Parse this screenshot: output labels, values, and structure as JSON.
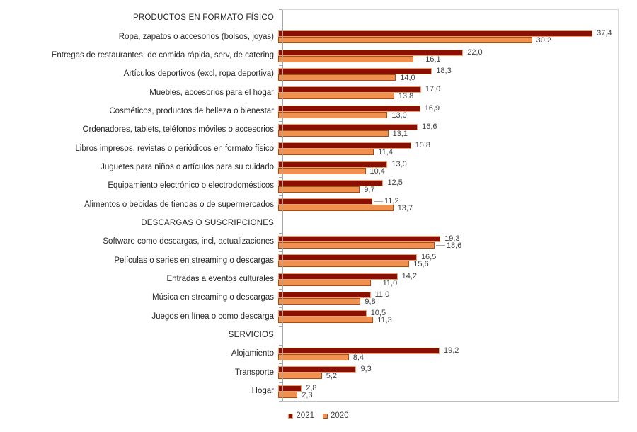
{
  "chart_data": {
    "type": "bar",
    "orientation": "horizontal",
    "title": "",
    "xlabel": "",
    "ylabel": "",
    "xlim": [
      0,
      40
    ],
    "grid": false,
    "legend_position": "bottom-center",
    "series": [
      "2021",
      "2020"
    ],
    "colors": {
      "fill_2021": "#8C0F04",
      "border_2021": "#E8A26B",
      "fill_2020": "#F09150",
      "border_2020": "#A84D15"
    },
    "groups": [
      {
        "header": "PRODUCTOS EN FORMATO FÍSICO",
        "items": [
          {
            "label": "Ropa, zapatos o accesorios (bolsos, joyas)",
            "v2021": 37.4,
            "v2020": 30.2
          },
          {
            "label": "Entregas de restaurantes, de comida rápida, serv, de catering",
            "v2021": 22.0,
            "v2020": 16.1,
            "callout2020": true
          },
          {
            "label": "Artículos deportivos (excl, ropa deportiva)",
            "v2021": 18.3,
            "v2020": 14.0
          },
          {
            "label": "Muebles, accesorios para el hogar",
            "v2021": 17.0,
            "v2020": 13.8
          },
          {
            "label": "Cosméticos, productos de belleza o bienestar",
            "v2021": 16.9,
            "v2020": 13.0
          },
          {
            "label": "Ordenadores, tablets, teléfonos móviles o accesorios",
            "v2021": 16.6,
            "v2020": 13.1
          },
          {
            "label": "Libros impresos, revistas o periódicos en formato físico",
            "v2021": 15.8,
            "v2020": 11.4
          },
          {
            "label": "Juguetes para niños o artículos para su cuidado",
            "v2021": 13.0,
            "v2020": 10.4
          },
          {
            "label": "Equipamiento electrónico o electrodomésticos",
            "v2021": 12.5,
            "v2020": 9.7
          },
          {
            "label": "Alimentos o bebidas de tiendas o de supermercados",
            "v2021": 11.2,
            "v2020": 13.7,
            "callout2021": true
          }
        ]
      },
      {
        "header": "DESCARGAS O SUSCRIPCIONES",
        "items": [
          {
            "label": "Software como descargas, incl, actualizaciones",
            "v2021": 19.3,
            "v2020": 18.6,
            "callout2020": true
          },
          {
            "label": "Películas o series en streaming o descargas",
            "v2021": 16.5,
            "v2020": 15.6
          },
          {
            "label": "Entradas a eventos culturales",
            "v2021": 14.2,
            "v2020": 11.0,
            "callout2020": true
          },
          {
            "label": "Música en streaming o descargas",
            "v2021": 11.0,
            "v2020": 9.8
          },
          {
            "label": "Juegos en línea o como descarga",
            "v2021": 10.5,
            "v2020": 11.3
          }
        ]
      },
      {
        "header": "SERVICIOS",
        "items": [
          {
            "label": "Alojamiento",
            "v2021": 19.2,
            "v2020": 8.4
          },
          {
            "label": "Transporte",
            "v2021": 9.3,
            "v2020": 5.2
          },
          {
            "label": "Hogar",
            "v2021": 2.8,
            "v2020": 2.3
          }
        ]
      }
    ],
    "legend": [
      {
        "label": "2021",
        "series": "2021"
      },
      {
        "label": "2020",
        "series": "2020"
      }
    ]
  }
}
